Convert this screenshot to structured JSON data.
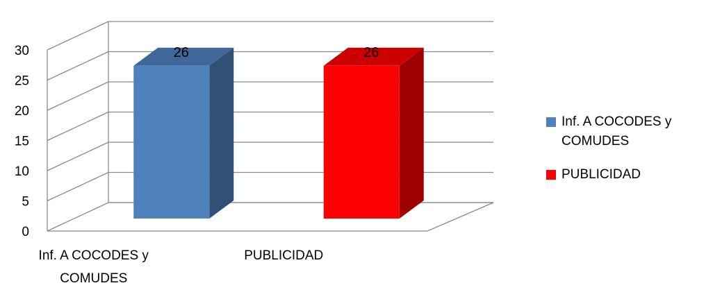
{
  "chart_data": {
    "type": "bar",
    "categories": [
      "Inf. A COCODES y COMUDES",
      "PUBLICIDAD"
    ],
    "category_lines": [
      [
        "Inf. A COCODES y",
        "COMUDES"
      ],
      [
        "PUBLICIDAD"
      ]
    ],
    "values": [
      26,
      26
    ],
    "data_labels": [
      "26",
      "26"
    ],
    "colors": [
      "#4f81bd",
      "#ff0000"
    ],
    "ylim": [
      0,
      30
    ],
    "yticks": [
      "0",
      "5",
      "10",
      "15",
      "20",
      "25",
      "30"
    ],
    "grid": true,
    "three_d": true,
    "legend_position": "right",
    "legend": [
      {
        "lines": [
          "Inf. A COCODES y",
          "COMUDES"
        ],
        "color": "#4f81bd"
      },
      {
        "lines": [
          "PUBLICIDAD"
        ],
        "color": "#ff0000"
      }
    ]
  }
}
